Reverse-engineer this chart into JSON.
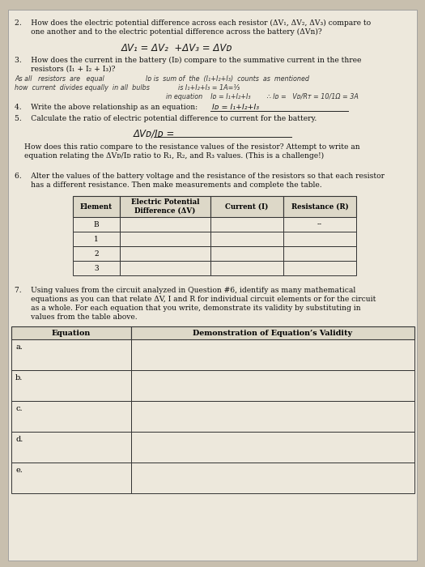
{
  "bg_color": "#c8bfae",
  "paper_color": "#ede8dc",
  "q2_text1": "2.    How does the electric potential difference across each resistor (ΔV₁, ΔV₂, ΔV₃) compare to",
  "q2_text2": "       one another and to the electric potential difference across the battery (ΔVn)?",
  "q2_answer": "ΔV₁ = ΔV₂  +ΔV₃ = ΔVᴅ",
  "q3_text1": "3.    How does the current in the battery (Iᴅ) compare to the summative current in the three",
  "q3_text2": "       resistors (I₁ + I₂ + I₃)?",
  "q3_hw_L1": "As all   resistors  are   equal",
  "q3_hw_R1": "Iᴅ is  sum of  the  (I₁+I₂+I₃)  counts  as  mentioned",
  "q3_hw_L2": "how  current  divides equally  in all  bulbs",
  "q3_hw_R2": "is I₁+I₂+I₃ = 1A=⅓",
  "q3_hw_R3": "in equation    Iᴅ = I₁+I₂+I₃        ∴ Iᴅ =   Vᴅ/Rᴛ = 10/1Ω = 3A",
  "q4_text": "4.    Write the above relationship as an equation:",
  "q4_answer": "Iᴅ = I₁+I₂+I₃",
  "q5_text": "5.    Calculate the ratio of electric potential difference to current for the battery.",
  "q5_formula": "ΔVᴅ/Iᴅ =",
  "q5_follow1": "How does this ratio compare to the resistance values of the resistor? Attempt to write an",
  "q5_follow2": "equation relating the ΔVᴅ/Iᴅ ratio to R₁, R₂, and R₃ values. (This is a challenge!)",
  "q6_text1": "6.    Alter the values of the battery voltage and the resistance of the resistors so that each resistor",
  "q6_text2": "       has a different resistance. Then make measurements and complete the table.",
  "table1_headers": [
    "Element",
    "Electric Potential\nDifference (ΔV)",
    "Current (I)",
    "Resistance (R)"
  ],
  "table1_rows": [
    "B",
    "1",
    "2",
    "3"
  ],
  "table1_dash": "--",
  "q7_text1": "7.    Using values from the circuit analyzed in Question #6, identify as many mathematical",
  "q7_text2": "       equations as you can that relate ΔV, I and R for individual circuit elements or for the circuit",
  "q7_text3": "       as a whole. For each equation that you write, demonstrate its validity by substituting in",
  "q7_text4": "       values from the table above.",
  "table2_col1_header": "Equation",
  "table2_col2_header": "Demonstration of Equation’s Validity",
  "table2_rows": [
    "a.",
    "b.",
    "c.",
    "d.",
    "e."
  ]
}
